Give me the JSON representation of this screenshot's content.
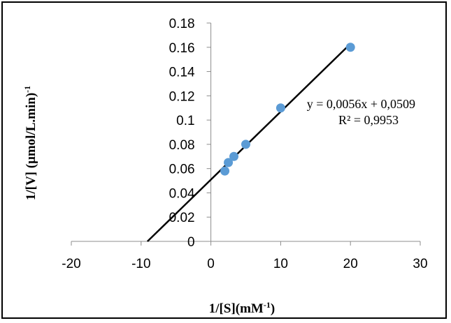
{
  "chart_data": {
    "type": "scatter",
    "xlabel": {
      "main": "1/[S](mM",
      "sup": "-1",
      "tail": ")"
    },
    "ylabel": {
      "main": "1/[V] (μmol/L.min)",
      "sup": "-1"
    },
    "xlim": [
      -20,
      30
    ],
    "ylim": [
      0,
      0.18
    ],
    "x_ticks": [
      -20,
      -10,
      0,
      10,
      20,
      30
    ],
    "x_tick_labels": [
      "-20",
      "-10",
      "0",
      "10",
      "20",
      "30"
    ],
    "y_ticks": [
      0,
      0.02,
      0.04,
      0.06,
      0.08,
      0.1,
      0.12,
      0.14,
      0.16,
      0.18
    ],
    "y_tick_labels": [
      "0",
      "0.02",
      "0.04",
      "0.06",
      "0.08",
      "0.1",
      "0.12",
      "0.14",
      "0.16",
      "0.18"
    ],
    "grid": false,
    "points": [
      {
        "x": 2,
        "y": 0.058
      },
      {
        "x": 2.5,
        "y": 0.065
      },
      {
        "x": 3.3,
        "y": 0.07
      },
      {
        "x": 5,
        "y": 0.08
      },
      {
        "x": 10,
        "y": 0.11
      },
      {
        "x": 20,
        "y": 0.16
      }
    ],
    "point_color": "#5b9bd5",
    "trendline": {
      "slope": 0.0056,
      "intercept": 0.0509,
      "x_start": -9.09,
      "x_end": 20,
      "color": "#000000"
    },
    "annotation": {
      "equation": "y = 0,0056x + 0,0509",
      "r_squared": "R² = 0,9953"
    }
  }
}
